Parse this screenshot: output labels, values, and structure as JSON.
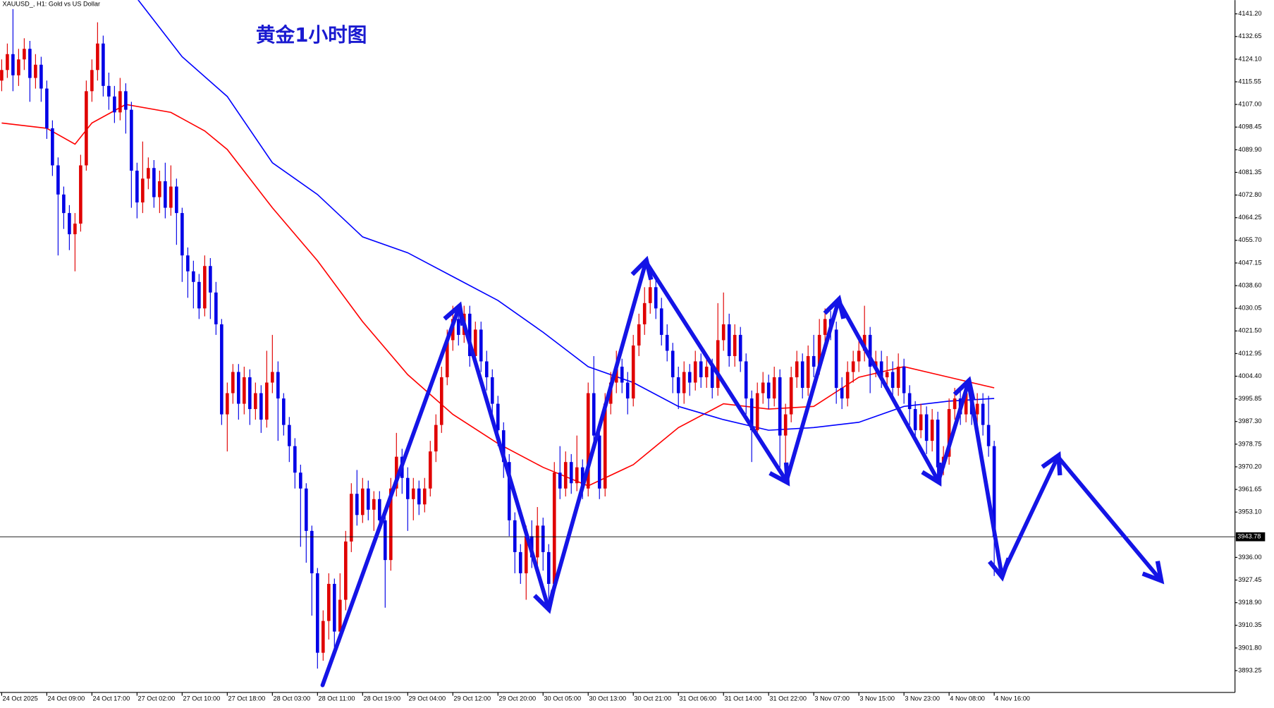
{
  "chart_data": {
    "type": "candlestick",
    "title": "XAUUSD_, H1:  Gold vs US Dollar",
    "annotation": "黄金1小时图",
    "up_color": "#e00000",
    "down_color": "#0000e6",
    "xlim": [
      -0.3,
      218.7
    ],
    "ylim": [
      3885.0,
      4146.4
    ],
    "xticks": [
      {
        "value": 0,
        "label": "24 Oct 2025"
      },
      {
        "value": 8,
        "label": "24 Oct 09:00"
      },
      {
        "value": 16,
        "label": "24 Oct 17:00"
      },
      {
        "value": 24,
        "label": "27 Oct 02:00"
      },
      {
        "value": 32,
        "label": "27 Oct 10:00"
      },
      {
        "value": 40,
        "label": "27 Oct 18:00"
      },
      {
        "value": 48,
        "label": "28 Oct 03:00"
      },
      {
        "value": 56,
        "label": "28 Oct 11:00"
      },
      {
        "value": 64,
        "label": "28 Oct 19:00"
      },
      {
        "value": 72,
        "label": "29 Oct 04:00"
      },
      {
        "value": 80,
        "label": "29 Oct 12:00"
      },
      {
        "value": 88,
        "label": "29 Oct 20:00"
      },
      {
        "value": 96,
        "label": "30 Oct 05:00"
      },
      {
        "value": 104,
        "label": "30 Oct 13:00"
      },
      {
        "value": 112,
        "label": "30 Oct 21:00"
      },
      {
        "value": 120,
        "label": "31 Oct 06:00"
      },
      {
        "value": 128,
        "label": "31 Oct 14:00"
      },
      {
        "value": 136,
        "label": "31 Oct 22:00"
      },
      {
        "value": 144,
        "label": "3 Nov 07:00"
      },
      {
        "value": 152,
        "label": "3 Nov 15:00"
      },
      {
        "value": 160,
        "label": "3 Nov 23:00"
      },
      {
        "value": 168,
        "label": "4 Nov 08:00"
      },
      {
        "value": 176,
        "label": "4 Nov 16:00"
      }
    ],
    "yticks": [
      {
        "value": 4141.2,
        "label": "4141.20"
      },
      {
        "value": 4132.65,
        "label": "4132.65"
      },
      {
        "value": 4124.1,
        "label": "4124.10"
      },
      {
        "value": 4115.55,
        "label": "4115.55"
      },
      {
        "value": 4107,
        "label": "4107.00"
      },
      {
        "value": 4098.45,
        "label": "4098.45"
      },
      {
        "value": 4089.9,
        "label": "4089.90"
      },
      {
        "value": 4081.35,
        "label": "4081.35"
      },
      {
        "value": 4072.8,
        "label": "4072.80"
      },
      {
        "value": 4064.25,
        "label": "4064.25"
      },
      {
        "value": 4055.7,
        "label": "4055.70"
      },
      {
        "value": 4047.15,
        "label": "4047.15"
      },
      {
        "value": 4038.6,
        "label": "4038.60"
      },
      {
        "value": 4030.05,
        "label": "4030.05"
      },
      {
        "value": 4021.5,
        "label": "4021.50"
      },
      {
        "value": 4012.95,
        "label": "4012.95"
      },
      {
        "value": 4004.4,
        "label": "4004.40"
      },
      {
        "value": 3995.85,
        "label": "3995.85"
      },
      {
        "value": 3987.3,
        "label": "3987.30"
      },
      {
        "value": 3978.75,
        "label": "3978.75"
      },
      {
        "value": 3970.2,
        "label": "3970.20"
      },
      {
        "value": 3961.65,
        "label": "3961.65"
      },
      {
        "value": 3953.1,
        "label": "3953.10"
      },
      {
        "value": 3936,
        "label": "3936.00"
      },
      {
        "value": 3927.45,
        "label": "3927.45"
      },
      {
        "value": 3918.9,
        "label": "3918.90"
      },
      {
        "value": 3910.35,
        "label": "3910.35"
      },
      {
        "value": 3901.8,
        "label": "3901.80"
      },
      {
        "value": 3893.25,
        "label": "3893.25"
      }
    ],
    "current_price": 3943.78,
    "ohlc": [
      [
        4116,
        4124,
        4112,
        4120
      ],
      [
        4120,
        4130,
        4117,
        4126
      ],
      [
        4126,
        4143,
        4112,
        4118
      ],
      [
        4118,
        4128,
        4114,
        4124
      ],
      [
        4124,
        4132,
        4120,
        4128
      ],
      [
        4128,
        4131,
        4108,
        4117
      ],
      [
        4117,
        4126,
        4113,
        4122
      ],
      [
        4122,
        4125,
        4108,
        4113
      ],
      [
        4113,
        4116,
        4094,
        4098
      ],
      [
        4098,
        4101,
        4080,
        4084
      ],
      [
        4084,
        4087,
        4050,
        4073
      ],
      [
        4073,
        4076,
        4060,
        4066
      ],
      [
        4066,
        4069,
        4052,
        4058
      ],
      [
        4058,
        4066,
        4044,
        4062
      ],
      [
        4062,
        4088,
        4059,
        4084
      ],
      [
        4084,
        4116,
        4082,
        4112
      ],
      [
        4112,
        4124,
        4108,
        4120
      ],
      [
        4120,
        4138,
        4116,
        4130
      ],
      [
        4130,
        4133,
        4110,
        4114
      ],
      [
        4114,
        4119,
        4105,
        4110
      ],
      [
        4110,
        4114,
        4100,
        4104
      ],
      [
        4104,
        4117,
        4101,
        4112
      ],
      [
        4112,
        4115,
        4096,
        4105
      ],
      [
        4105,
        4108,
        4068,
        4082
      ],
      [
        4082,
        4085,
        4064,
        4070
      ],
      [
        4070,
        4093,
        4066,
        4079
      ],
      [
        4079,
        4087,
        4075,
        4083
      ],
      [
        4083,
        4086,
        4068,
        4072
      ],
      [
        4072,
        4082,
        4066,
        4078
      ],
      [
        4078,
        4085,
        4064,
        4068
      ],
      [
        4068,
        4084,
        4065,
        4076
      ],
      [
        4076,
        4079,
        4054,
        4066
      ],
      [
        4066,
        4068,
        4040,
        4050
      ],
      [
        4050,
        4053,
        4034,
        4044
      ],
      [
        4044,
        4048,
        4030,
        4040
      ],
      [
        4040,
        4043,
        4026,
        4030
      ],
      [
        4030,
        4050,
        4027,
        4046
      ],
      [
        4046,
        4049,
        4026,
        4036
      ],
      [
        4036,
        4040,
        4020,
        4024
      ],
      [
        4024,
        4026,
        3986,
        3990
      ],
      [
        3990,
        4002,
        3976,
        3998
      ],
      [
        3998,
        4009,
        3994,
        4006
      ],
      [
        4006,
        4009,
        3988,
        3994
      ],
      [
        3994,
        4008,
        3990,
        4004
      ],
      [
        4004,
        4007,
        3986,
        3992
      ],
      [
        3992,
        4002,
        3988,
        3998
      ],
      [
        3998,
        4001,
        3983,
        3988
      ],
      [
        3988,
        4014,
        3985,
        4002
      ],
      [
        4002,
        4020,
        3998,
        4006
      ],
      [
        4006,
        4010,
        3980,
        3996
      ],
      [
        3996,
        3998,
        3982,
        3986
      ],
      [
        3986,
        3989,
        3972,
        3978
      ],
      [
        3978,
        3981,
        3962,
        3968
      ],
      [
        3968,
        3971,
        3940,
        3962
      ],
      [
        3962,
        3964,
        3934,
        3946
      ],
      [
        3946,
        3948,
        3914,
        3930
      ],
      [
        3930,
        3932,
        3894,
        3900
      ],
      [
        3900,
        3916,
        3897,
        3912
      ],
      [
        3912,
        3930,
        3905,
        3926
      ],
      [
        3926,
        3928,
        3902,
        3908
      ],
      [
        3908,
        3930,
        3904,
        3920
      ],
      [
        3920,
        3946,
        3916,
        3942
      ],
      [
        3942,
        3964,
        3938,
        3960
      ],
      [
        3960,
        3969,
        3948,
        3952
      ],
      [
        3952,
        3966,
        3949,
        3962
      ],
      [
        3962,
        3965,
        3950,
        3954
      ],
      [
        3954,
        3961,
        3946,
        3958
      ],
      [
        3958,
        3961,
        3946,
        3950
      ],
      [
        3950,
        3953,
        3917,
        3935
      ],
      [
        3935,
        3966,
        3931,
        3962
      ],
      [
        3962,
        3983,
        3959,
        3974
      ],
      [
        3974,
        3977,
        3960,
        3966
      ],
      [
        3966,
        3970,
        3946,
        3958
      ],
      [
        3958,
        3966,
        3950,
        3962
      ],
      [
        3962,
        3965,
        3952,
        3956
      ],
      [
        3956,
        3966,
        3953,
        3962
      ],
      [
        3962,
        3980,
        3959,
        3976
      ],
      [
        3976,
        3990,
        3972,
        3986
      ],
      [
        3986,
        4008,
        3983,
        4004
      ],
      [
        4004,
        4022,
        4001,
        4018
      ],
      [
        4018,
        4031,
        4014,
        4026
      ],
      [
        4026,
        4029,
        4016,
        4020
      ],
      [
        4020,
        4031,
        4017,
        4028
      ],
      [
        4028,
        4031,
        4008,
        4012
      ],
      [
        4012,
        4025,
        4009,
        4022
      ],
      [
        4022,
        4025,
        4006,
        4010
      ],
      [
        4010,
        4014,
        3999,
        4004
      ],
      [
        4004,
        4007,
        3989,
        3994
      ],
      [
        3994,
        3997,
        3978,
        3984
      ],
      [
        3984,
        3987,
        3966,
        3972
      ],
      [
        3972,
        3975,
        3944,
        3950
      ],
      [
        3950,
        3953,
        3930,
        3938
      ],
      [
        3938,
        3941,
        3926,
        3930
      ],
      [
        3930,
        3948,
        3920,
        3944
      ],
      [
        3944,
        3950,
        3932,
        3936
      ],
      [
        3936,
        3955,
        3932,
        3948
      ],
      [
        3948,
        3951,
        3931,
        3938
      ],
      [
        3938,
        3941,
        3919,
        3926
      ],
      [
        3926,
        3972,
        3923,
        3968
      ],
      [
        3968,
        3978,
        3958,
        3962
      ],
      [
        3962,
        3976,
        3959,
        3972
      ],
      [
        3972,
        3975,
        3960,
        3964
      ],
      [
        3964,
        3982,
        3961,
        3970
      ],
      [
        3970,
        3973,
        3958,
        3962
      ],
      [
        3962,
        4002,
        3959,
        3998
      ],
      [
        3998,
        4012,
        3978,
        3982
      ],
      [
        3982,
        3985,
        3958,
        3962
      ],
      [
        3962,
        3998,
        3959,
        3994
      ],
      [
        3994,
        4006,
        3990,
        4002
      ],
      [
        4002,
        4014,
        3998,
        4008
      ],
      [
        4008,
        4011,
        3998,
        4002
      ],
      [
        4002,
        4006,
        3990,
        3996
      ],
      [
        3996,
        4020,
        3993,
        4016
      ],
      [
        4016,
        4028,
        4012,
        4024
      ],
      [
        4024,
        4038,
        4020,
        4032
      ],
      [
        4032,
        4046,
        4028,
        4038
      ],
      [
        4038,
        4042,
        4026,
        4030
      ],
      [
        4030,
        4034,
        4016,
        4020
      ],
      [
        4020,
        4024,
        4010,
        4014
      ],
      [
        4014,
        4017,
        3998,
        4004
      ],
      [
        4004,
        4008,
        3992,
        3998
      ],
      [
        3998,
        4010,
        3994,
        4006
      ],
      [
        4006,
        4009,
        3997,
        4002
      ],
      [
        4002,
        4014,
        3999,
        4010
      ],
      [
        4010,
        4013,
        4000,
        4004
      ],
      [
        4004,
        4012,
        4000,
        4008
      ],
      [
        4008,
        4011,
        3996,
        4000
      ],
      [
        4000,
        4032,
        3997,
        4018
      ],
      [
        4018,
        4036,
        4014,
        4024
      ],
      [
        4024,
        4028,
        4008,
        4012
      ],
      [
        4012,
        4024,
        4008,
        4020
      ],
      [
        4020,
        4023,
        4006,
        4010
      ],
      [
        4010,
        4013,
        3990,
        3996
      ],
      [
        3996,
        3999,
        3972,
        3984
      ],
      [
        3984,
        4002,
        3981,
        3998
      ],
      [
        3998,
        4006,
        3994,
        4002
      ],
      [
        4002,
        4005,
        3992,
        3996
      ],
      [
        3996,
        4008,
        3993,
        4004
      ],
      [
        4004,
        4007,
        3970,
        3982
      ],
      [
        3982,
        3994,
        3966,
        3990
      ],
      [
        3990,
        4008,
        3987,
        4004
      ],
      [
        4004,
        4014,
        4000,
        4010
      ],
      [
        4010,
        4013,
        3996,
        4000
      ],
      [
        4000,
        4016,
        3997,
        4012
      ],
      [
        4012,
        4020,
        4004,
        4008
      ],
      [
        4008,
        4026,
        4005,
        4020
      ],
      [
        4020,
        4030,
        4016,
        4026
      ],
      [
        4026,
        4029,
        4018,
        4022
      ],
      [
        4022,
        4025,
        3994,
        4000
      ],
      [
        4000,
        4004,
        3992,
        3996
      ],
      [
        3996,
        4010,
        3993,
        4006
      ],
      [
        4006,
        4014,
        4002,
        4010
      ],
      [
        4010,
        4018,
        4006,
        4014
      ],
      [
        4014,
        4031,
        4010,
        4020
      ],
      [
        4020,
        4023,
        3998,
        4008
      ],
      [
        4008,
        4014,
        4004,
        4010
      ],
      [
        4010,
        4014,
        4000,
        4004
      ],
      [
        4004,
        4012,
        4000,
        4006
      ],
      [
        4006,
        4010,
        3996,
        4000
      ],
      [
        4000,
        4013,
        3997,
        4008
      ],
      [
        4008,
        4011,
        3994,
        3998
      ],
      [
        3998,
        4001,
        3986,
        3992
      ],
      [
        3992,
        3995,
        3980,
        3984
      ],
      [
        3984,
        3994,
        3981,
        3990
      ],
      [
        3990,
        3993,
        3975,
        3980
      ],
      [
        3980,
        3992,
        3976,
        3988
      ],
      [
        3988,
        3991,
        3966,
        3970
      ],
      [
        3970,
        3978,
        3967,
        3974
      ],
      [
        3974,
        3996,
        3971,
        3992
      ],
      [
        3992,
        4000,
        3988,
        3996
      ],
      [
        3996,
        4000,
        3986,
        3990
      ],
      [
        3990,
        4002,
        3987,
        3998
      ],
      [
        3998,
        4001,
        3986,
        3990
      ],
      [
        3990,
        3998,
        3986,
        3994
      ],
      [
        3994,
        3998,
        3982,
        3986
      ],
      [
        3986,
        3997,
        3974,
        3978
      ],
      [
        3978,
        3980,
        3929,
        3943.78
      ]
    ],
    "ma_lines": [
      {
        "color": "#ff0000",
        "x": [
          0,
          8,
          13,
          16,
          22,
          30,
          36,
          40,
          48,
          56,
          64,
          72,
          80,
          88,
          96,
          104,
          112,
          120,
          128,
          136,
          144,
          152,
          160,
          168,
          176
        ],
        "values": [
          4100,
          4098,
          4092,
          4100,
          4107,
          4104,
          4097,
          4090,
          4068,
          4048,
          4025,
          4005,
          3990,
          3979,
          3970,
          3963,
          3971,
          3985,
          3994,
          3992,
          3993,
          4004,
          4008,
          4004,
          4000
        ]
      },
      {
        "color": "#0000ff",
        "x": [
          24,
          32,
          40,
          48,
          56,
          64,
          72,
          80,
          88,
          96,
          104,
          112,
          120,
          128,
          136,
          144,
          152,
          160,
          168,
          176
        ],
        "values": [
          4147,
          4125,
          4110,
          4085,
          4073,
          4057,
          4051,
          4042,
          4033,
          4021,
          4008,
          4002,
          3993,
          3988,
          3984,
          3985,
          3987,
          3993,
          3995,
          3996
        ]
      }
    ]
  }
}
